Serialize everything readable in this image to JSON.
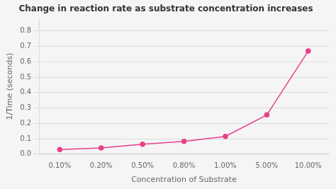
{
  "chart_data": {
    "type": "line",
    "title": "Change in reaction rate as substrate concentration increases",
    "x_label": "Concentration of Substrate",
    "y_label": "1/Time (seconds)",
    "categories": [
      "0.10%",
      "0.20%",
      "0.50%",
      "0.80%",
      "1.00%",
      "5.00%",
      "10.00%"
    ],
    "values": [
      0.03,
      0.04,
      0.065,
      0.083,
      0.115,
      0.255,
      0.67
    ],
    "color": "#e8408a",
    "marker": "circle",
    "ylim": [
      0,
      0.88
    ],
    "yticks": [
      {
        "value": 0,
        "label": "0.0"
      },
      0.1,
      0.2,
      0.3,
      0.4,
      0.5,
      0.6,
      0.7,
      0.8
    ],
    "grid": true
  }
}
